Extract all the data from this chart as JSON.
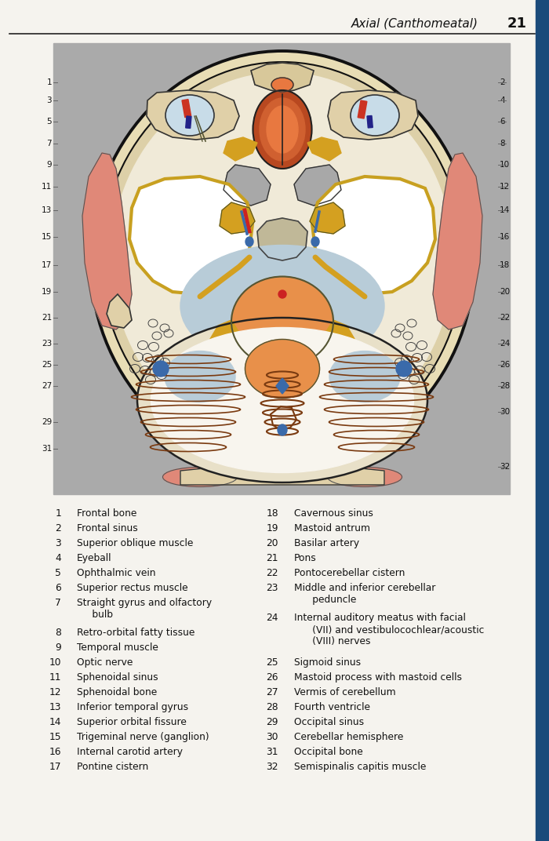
{
  "page_title": "Axial (Canthomeatal)",
  "page_number": "21",
  "background_color": "#f5f3ee",
  "header_line_color": "#222222",
  "sidebar_color": "#1a4a7a",
  "image_bg_color": "#aaaaaa",
  "skull_outer_color": "#e8ddb5",
  "skull_bone_color": "#d8c89a",
  "brain_bg_color": "#f0ead8",
  "temporal_muscle_color": "#e08878",
  "eyeball_color": "#c8dce8",
  "sphenoid_sinus_outer": "#c85520",
  "sphenoid_sinus_inner": "#e07840",
  "temporal_lobe_color": "#f0ead8",
  "temporal_lobe_border": "#c8a020",
  "cistern_color": "#b8ccd8",
  "pons_color": "#e8904a",
  "cerebellum_color": "#f0e8d8",
  "cerebellum_folia_color": "#7a3a10",
  "blue_sinus_color": "#3a6aaa",
  "basilar_color": "#cc2222",
  "yellow_nerve_color": "#d4a020",
  "red_muscle_color": "#e08878",
  "gray_bone_color": "#a0a0a0",
  "left_nums": [
    1,
    3,
    5,
    7,
    9,
    11,
    13,
    15,
    17,
    19,
    21,
    23,
    25,
    27,
    29,
    31
  ],
  "right_nums": [
    2,
    4,
    6,
    8,
    10,
    12,
    14,
    16,
    18,
    20,
    22,
    24,
    26,
    28,
    30,
    32
  ],
  "legend_col1": [
    [
      "1",
      "Frontal bone"
    ],
    [
      "2",
      "Frontal sinus"
    ],
    [
      "3",
      "Superior oblique muscle"
    ],
    [
      "4",
      "Eyeball"
    ],
    [
      "5",
      "Ophthalmic vein"
    ],
    [
      "6",
      "Superior rectus muscle"
    ],
    [
      "7",
      "Straight gyrus and olfactory\n     bulb"
    ],
    [
      "8",
      "Retro-orbital fatty tissue"
    ],
    [
      "9",
      "Temporal muscle"
    ],
    [
      "10",
      "Optic nerve"
    ],
    [
      "11",
      "Sphenoidal sinus"
    ],
    [
      "12",
      "Sphenoidal bone"
    ],
    [
      "13",
      "Inferior temporal gyrus"
    ],
    [
      "14",
      "Superior orbital fissure"
    ],
    [
      "15",
      "Trigeminal nerve (ganglion)"
    ],
    [
      "16",
      "Internal carotid artery"
    ],
    [
      "17",
      "Pontine cistern"
    ]
  ],
  "legend_col2": [
    [
      "18",
      "Cavernous sinus"
    ],
    [
      "19",
      "Mastoid antrum"
    ],
    [
      "20",
      "Basilar artery"
    ],
    [
      "21",
      "Pons"
    ],
    [
      "22",
      "Pontocerebellar cistern"
    ],
    [
      "23",
      "Middle and inferior cerebellar\n      peduncle"
    ],
    [
      "24",
      "Internal auditory meatus with facial\n      (VII) and vestibulocochlear/acoustic\n      (VIII) nerves"
    ],
    [
      "25",
      "Sigmoid sinus"
    ],
    [
      "26",
      "Mastoid process with mastoid cells"
    ],
    [
      "27",
      "Vermis of cerebellum"
    ],
    [
      "28",
      "Fourth ventricle"
    ],
    [
      "29",
      "Occipital sinus"
    ],
    [
      "30",
      "Cerebellar hemisphere"
    ],
    [
      "31",
      "Occipital bone"
    ],
    [
      "32",
      "Semispinalis capitis muscle"
    ]
  ]
}
